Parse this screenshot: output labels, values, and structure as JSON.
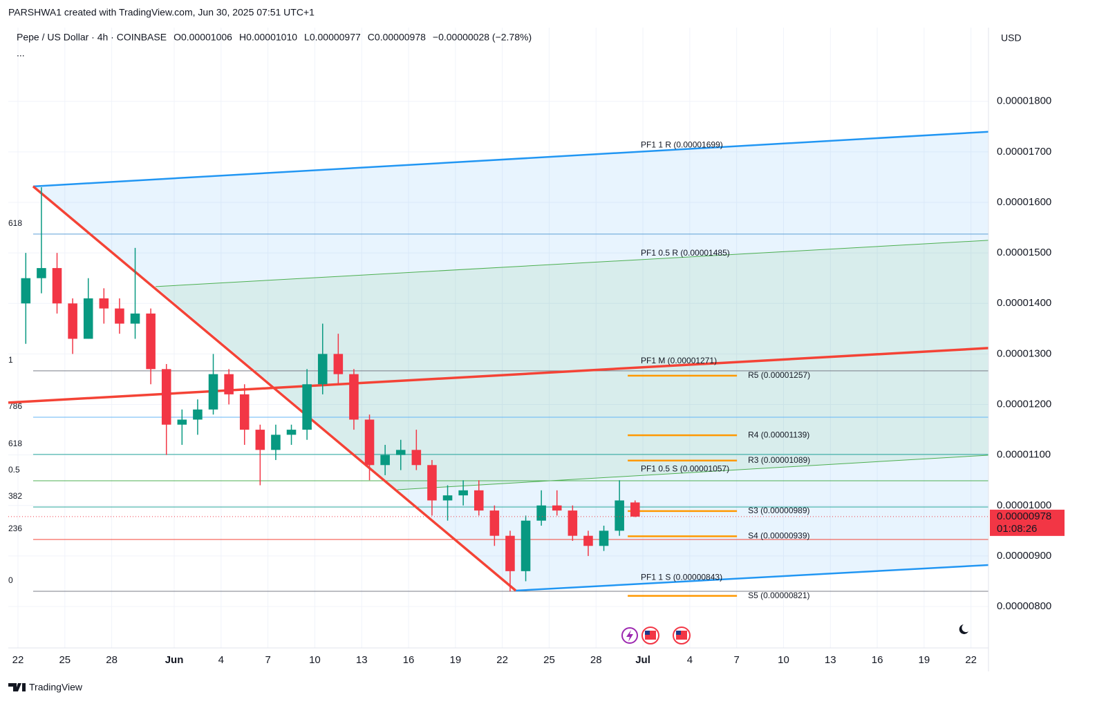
{
  "header": {
    "credit": "PARSHWA1 created with TradingView.com, Jun 30, 2025 07:51 UTC+1",
    "symbol": "Pepe / US Dollar · 4h · COINBASE",
    "ohlc": [
      {
        "key": "O",
        "text": "0.00001006"
      },
      {
        "key": "H",
        "text": "0.00001010"
      },
      {
        "key": "L",
        "text": "0.00000977"
      },
      {
        "key": "C",
        "text": "0.00000978"
      }
    ],
    "change": "−0.00000028 (−2.78%)",
    "more": "...",
    "brand": "TradingView"
  },
  "chart_data": {
    "type": "candlestick",
    "currency": "USD",
    "up_color": "#089981",
    "down_color": "#f23645",
    "xlim": [
      -0.62,
      62.12
    ],
    "ylim": [
      7.18e-06,
      1.946e-05
    ],
    "xticks": [
      {
        "value": 0,
        "label": "22"
      },
      {
        "value": 3,
        "label": "25"
      },
      {
        "value": 6,
        "label": "28"
      },
      {
        "value": 10,
        "label": "Jun"
      },
      {
        "value": 13,
        "label": "4"
      },
      {
        "value": 16,
        "label": "7"
      },
      {
        "value": 19,
        "label": "10"
      },
      {
        "value": 22,
        "label": "13"
      },
      {
        "value": 25,
        "label": "16"
      },
      {
        "value": 28,
        "label": "19"
      },
      {
        "value": 31,
        "label": "22"
      },
      {
        "value": 34,
        "label": "25"
      },
      {
        "value": 37,
        "label": "28"
      },
      {
        "value": 40,
        "label": "Jul"
      },
      {
        "value": 43,
        "label": "4"
      },
      {
        "value": 46,
        "label": "7"
      },
      {
        "value": 49,
        "label": "10"
      },
      {
        "value": 52,
        "label": "13"
      },
      {
        "value": 55,
        "label": "16"
      },
      {
        "value": 58,
        "label": "19"
      },
      {
        "value": 61,
        "label": "22"
      }
    ],
    "yticks": [
      {
        "value": 8e-06,
        "label": "0.00000800"
      },
      {
        "value": 9e-06,
        "label": "0.00000900"
      },
      {
        "value": 1e-05,
        "label": "0.00001000"
      },
      {
        "value": 1.1e-05,
        "label": "0.00001100"
      },
      {
        "value": 1.2e-05,
        "label": "0.00001200"
      },
      {
        "value": 1.3e-05,
        "label": "0.00001300"
      },
      {
        "value": 1.4e-05,
        "label": "0.00001400"
      },
      {
        "value": 1.5e-05,
        "label": "0.00001500"
      },
      {
        "value": 1.6e-05,
        "label": "0.00001600"
      },
      {
        "value": 1.7e-05,
        "label": "0.00001700"
      },
      {
        "value": 1.8e-05,
        "label": "0.00001800"
      }
    ],
    "grid": true,
    "x": [
      0,
      1,
      2,
      3,
      4,
      5,
      6,
      7,
      8,
      9,
      10,
      11,
      12,
      13,
      14,
      15,
      16,
      17,
      18,
      19,
      20,
      21,
      22,
      23,
      24,
      25,
      26,
      27,
      28,
      29,
      30,
      31,
      32,
      33,
      34,
      35,
      36,
      37,
      38,
      39
    ],
    "open": [
      1.4e-05,
      1.45e-05,
      1.47e-05,
      1.4e-05,
      1.33e-05,
      1.41e-05,
      1.39e-05,
      1.36e-05,
      1.38e-05,
      1.27e-05,
      1.16e-05,
      1.17e-05,
      1.19e-05,
      1.26e-05,
      1.22e-05,
      1.15e-05,
      1.11e-05,
      1.14e-05,
      1.15e-05,
      1.24e-05,
      1.3e-05,
      1.26e-05,
      1.17e-05,
      1.08e-05,
      1.1e-05,
      1.11e-05,
      1.08e-05,
      1.01e-05,
      1.02e-05,
      1.03e-05,
      9.9e-06,
      9.4e-06,
      8.7e-06,
      9.7e-06,
      1e-05,
      9.9e-06,
      9.4e-06,
      9.2e-06,
      9.5e-06,
      1.006e-05
    ],
    "high": [
      1.5e-05,
      1.63e-05,
      1.5e-05,
      1.41e-05,
      1.45e-05,
      1.43e-05,
      1.41e-05,
      1.51e-05,
      1.39e-05,
      1.28e-05,
      1.19e-05,
      1.21e-05,
      1.3e-05,
      1.27e-05,
      1.24e-05,
      1.16e-05,
      1.16e-05,
      1.16e-05,
      1.27e-05,
      1.36e-05,
      1.34e-05,
      1.27e-05,
      1.18e-05,
      1.12e-05,
      1.13e-05,
      1.15e-05,
      1.09e-05,
      1.04e-05,
      1.05e-05,
      1.05e-05,
      1e-05,
      9.5e-06,
      9.8e-06,
      1.03e-05,
      1.03e-05,
      1e-05,
      9.5e-06,
      9.6e-06,
      1.05e-05,
      1.01e-05
    ],
    "low": [
      1.32e-05,
      1.42e-05,
      1.38e-05,
      1.3e-05,
      1.33e-05,
      1.36e-05,
      1.34e-05,
      1.33e-05,
      1.24e-05,
      1.1e-05,
      1.12e-05,
      1.14e-05,
      1.18e-05,
      1.2e-05,
      1.12e-05,
      1.04e-05,
      1.09e-05,
      1.12e-05,
      1.13e-05,
      1.22e-05,
      1.24e-05,
      1.15e-05,
      1.05e-05,
      1.06e-05,
      1.07e-05,
      1.07e-05,
      9.8e-06,
      9.7e-06,
      1e-05,
      9.8e-06,
      9.2e-06,
      8.3e-06,
      8.5e-06,
      9.6e-06,
      9.8e-06,
      9.3e-06,
      9e-06,
      9.1e-06,
      9.4e-06,
      9.77e-06
    ],
    "close": [
      1.45e-05,
      1.47e-05,
      1.4e-05,
      1.33e-05,
      1.41e-05,
      1.39e-05,
      1.36e-05,
      1.38e-05,
      1.27e-05,
      1.16e-05,
      1.17e-05,
      1.19e-05,
      1.26e-05,
      1.22e-05,
      1.15e-05,
      1.11e-05,
      1.14e-05,
      1.15e-05,
      1.24e-05,
      1.3e-05,
      1.26e-05,
      1.17e-05,
      1.08e-05,
      1.1e-05,
      1.11e-05,
      1.08e-05,
      1.01e-05,
      1.02e-05,
      1.03e-05,
      9.9e-06,
      9.4e-06,
      8.7e-06,
      9.7e-06,
      1e-05,
      9.9e-06,
      9.4e-06,
      9.2e-06,
      9.5e-06,
      1.01e-05,
      9.78e-06
    ],
    "last_price": {
      "value": 9.78e-06,
      "countdown": "01:08:26",
      "color": "#f23645"
    },
    "pitchfork": [
      {
        "label": "PF1 1 R (0.00001699)",
        "color": "#2196f3",
        "width": 2.5,
        "x": [
          0.97,
          62.12
        ],
        "y": [
          1.6317e-05,
          1.7398e-05
        ]
      },
      {
        "label": "PF1 0.5 R (0.00001485)",
        "color": "#4caf50",
        "width": 1,
        "x": [
          8.81,
          62.12
        ],
        "y": [
          1.4334e-05,
          1.525e-05
        ]
      },
      {
        "label": "PF1 M (0.00001271)",
        "color": "#f44336",
        "width": 3.5,
        "x": [
          -0.62,
          62.12
        ],
        "y": [
          1.2036e-05,
          1.3116e-05
        ]
      },
      {
        "label": "PF1 0.5 S (0.00001057)",
        "color": "#4caf50",
        "width": 1,
        "x": [
          24.29,
          62.12
        ],
        "y": [
          1.0312e-05,
          1.0996e-05
        ]
      },
      {
        "label": "PF1 1 S (0.00000843)",
        "color": "#2196f3",
        "width": 2.5,
        "x": [
          31.86,
          62.12
        ],
        "y": [
          8.315e-06,
          8.821e-06
        ]
      },
      {
        "color": "#f44336",
        "width": 3.5,
        "x": [
          0.97,
          31.86
        ],
        "y": [
          1.6317e-05,
          8.315e-06
        ]
      }
    ],
    "fib": [
      {
        "label": "618",
        "value": 1.5373e-05,
        "color": "#5b9fd6"
      },
      {
        "label": "1",
        "value": 1.2665e-05,
        "color": "#787b86"
      },
      {
        "label": "786",
        "value": 1.1748e-05,
        "color": "#64b5f6"
      },
      {
        "label": "618",
        "value": 1.101e-05,
        "color": "#26a69a"
      },
      {
        "label": "0.5",
        "value": 1.049e-05,
        "color": "#4caf50"
      },
      {
        "label": "382",
        "value": 9.97e-06,
        "color": "#26a69a"
      },
      {
        "label": "236",
        "value": 9.327e-06,
        "color": "#f44336"
      },
      {
        "label": "0",
        "value": 8.301e-06,
        "color": "#787b86"
      }
    ],
    "fib_x": [
      0.97,
      62.12
    ],
    "pivots": {
      "color": "#ff9800",
      "x": [
        39.03,
        46.02
      ],
      "levels": [
        {
          "label": "R5 (0.00001257)",
          "value": 1.257e-05
        },
        {
          "label": "R4 (0.00001139)",
          "value": 1.139e-05
        },
        {
          "label": "R3 (0.00001089)",
          "value": 1.089e-05
        },
        {
          "label": "S3 (0.00000989)",
          "value": 9.89e-06
        },
        {
          "label": "S4 (0.00000939)",
          "value": 9.39e-06
        },
        {
          "label": "S5 (0.00000821)",
          "value": 8.21e-06
        }
      ]
    }
  }
}
